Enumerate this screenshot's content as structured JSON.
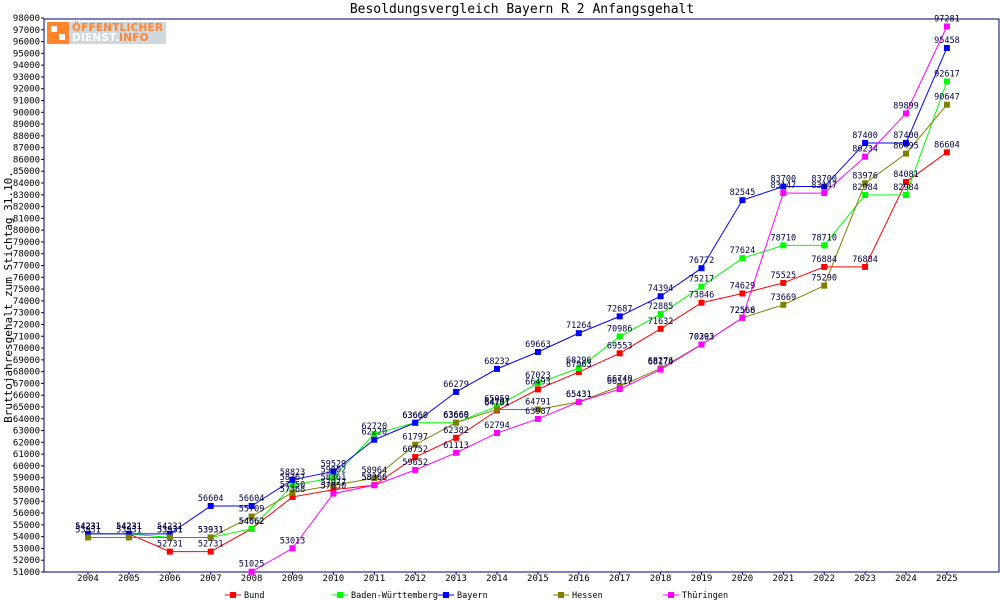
{
  "chart_data": {
    "type": "line",
    "title": "Besoldungsvergleich Bayern R 2 Anfangsgehalt",
    "ylabel": "Bruttojahresgehalt zum Stichtag 31.10.",
    "xlabel": "",
    "ylim": [
      51000,
      98000
    ],
    "ytick_step": 1000,
    "legend_position": "bottom",
    "grid": false,
    "categories": [
      "2004",
      "2005",
      "2006",
      "2007",
      "2008",
      "2009",
      "2010",
      "2011",
      "2012",
      "2013",
      "2014",
      "2015",
      "2016",
      "2017",
      "2018",
      "2019",
      "2020",
      "2021",
      "2022",
      "2023",
      "2024",
      "2025"
    ],
    "series": [
      {
        "name": "Bund",
        "color": "#ff0000",
        "values": [
          54231,
          54231,
          52731,
          52731,
          54662,
          57368,
          57977,
          58366,
          60752,
          62382,
          64701,
          66493,
          67963,
          69553,
          71632,
          73846,
          74629,
          75525,
          76884,
          76884,
          84081,
          86604
        ]
      },
      {
        "name": "Baden-Württemberg",
        "color": "#00ff00",
        "values": [
          54231,
          54231,
          53931,
          53931,
          54662,
          58367,
          59002,
          62720,
          63660,
          63660,
          65059,
          67023,
          68296,
          70986,
          72885,
          75217,
          77624,
          78710,
          78710,
          82984,
          82984,
          92617
        ]
      },
      {
        "name": "Bayern",
        "color": "#0000ff",
        "values": [
          54231,
          54231,
          54231,
          56604,
          56604,
          58823,
          59529,
          62220,
          63660,
          66279,
          68232,
          69663,
          71264,
          72687,
          74394,
          76772,
          82545,
          83700,
          83700,
          87400,
          87400,
          95458
        ]
      },
      {
        "name": "Hessen",
        "color": "#808000",
        "values": [
          53931,
          53931,
          53931,
          53931,
          55709,
          57750,
          58361,
          58964,
          61797,
          63669,
          64791,
          64791,
          65431,
          66748,
          68276,
          70303,
          72566,
          73669,
          75290,
          83976,
          86495,
          90647
        ]
      },
      {
        "name": "Thüringen",
        "color": "#ff00ff",
        "values": [
          null,
          null,
          null,
          null,
          51025,
          53013,
          57650,
          58366,
          59652,
          61113,
          62794,
          63987,
          65431,
          66517,
          68174,
          70293,
          72568,
          83147,
          83147,
          86234,
          89899,
          97281
        ]
      }
    ]
  },
  "logo": {
    "line1": "ÖFFENTLICHER",
    "line2": "DIENST.",
    "line2_accent": "INFO"
  }
}
